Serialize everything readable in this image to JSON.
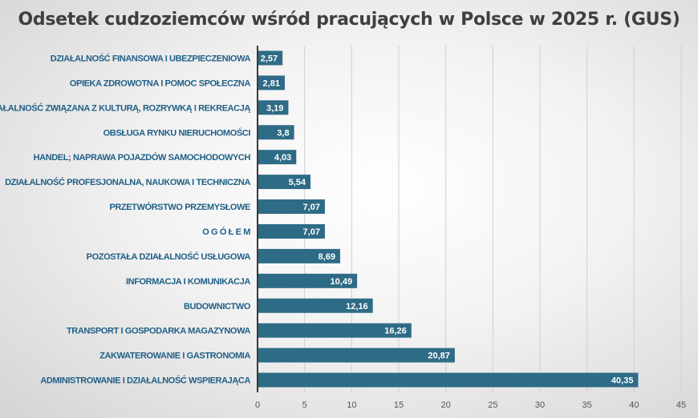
{
  "chart_data": {
    "type": "bar",
    "orientation": "horizontal",
    "title": "Odsetek cudzoziemców wśród pracujących w Polsce w 2025 r.  (GUS)",
    "categories": [
      "DZIAŁALNOŚĆ FINANSOWA I UBEZPIECZENIOWA",
      "OPIEKA ZDROWOTNA I POMOC SPOŁECZNA",
      "DZIAŁALNOŚĆ ZWIĄZANA Z KULTURĄ,  ROZRYWKĄ I REKREACJĄ",
      "OBSŁUGA RYNKU NIERUCHOMOŚCI",
      "HANDEL; NAPRAWA POJAZDÓW SAMOCHODOWYCH",
      "DZIAŁALNOŚĆ  PROFESJONALNA, NAUKOWA I TECHNICZNA",
      "PRZETWÓRSTWO PRZEMYSŁOWE",
      "O G Ó Ł E M",
      "POZOSTAŁA DZIAŁALNOŚĆ USŁUGOWA",
      "INFORMACJA I KOMUNIKACJA",
      "BUDOWNICTWO",
      "TRANSPORT I GOSPODARKA MAGAZYNOWA",
      "ZAKWATEROWANIE I GASTRONOMIA",
      "ADMINISTROWANIE I DZIAŁALNOŚĆ WSPIERAJĄCA"
    ],
    "values": [
      2.57,
      2.81,
      3.19,
      3.8,
      4.03,
      5.54,
      7.07,
      7.07,
      8.69,
      10.49,
      12.16,
      16.26,
      20.87,
      40.35
    ],
    "data_labels": [
      "2,57",
      "2,81",
      "3,19",
      "3,8",
      "4,03",
      "5,54",
      "7,07",
      "7,07",
      "8,69",
      "10,49",
      "12,16",
      "16,26",
      "20,87",
      "40,35"
    ],
    "xlim": [
      0,
      45
    ],
    "x_ticks": [
      "0",
      "5",
      "10",
      "15",
      "20",
      "25",
      "30",
      "35",
      "40",
      "45"
    ],
    "grid": "vertical",
    "legend": "none",
    "bar_color": "#2e6b86",
    "label_color": "#1f5f86"
  }
}
